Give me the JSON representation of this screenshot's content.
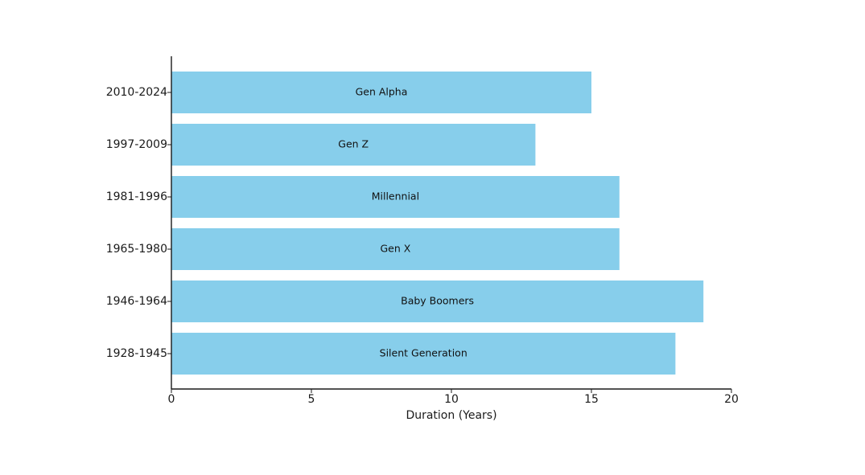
{
  "chart_data": {
    "type": "bar",
    "orientation": "horizontal",
    "categories": [
      "1928-1945",
      "1946-1964",
      "1965-1980",
      "1981-1996",
      "1997-2009",
      "2010-2024"
    ],
    "values": [
      18,
      19,
      16,
      16,
      13,
      15
    ],
    "bar_labels": [
      "Silent Generation",
      "Baby Boomers",
      "Gen X",
      "Millennial",
      "Gen Z",
      "Gen Alpha"
    ],
    "title": "",
    "xlabel": "Duration (Years)",
    "ylabel": "",
    "xlim": [
      0,
      20
    ],
    "xticks": [
      0,
      5,
      10,
      15,
      20
    ],
    "grid": false,
    "bar_color": "#87CEEB",
    "axis_color": "#1a1a1a"
  }
}
